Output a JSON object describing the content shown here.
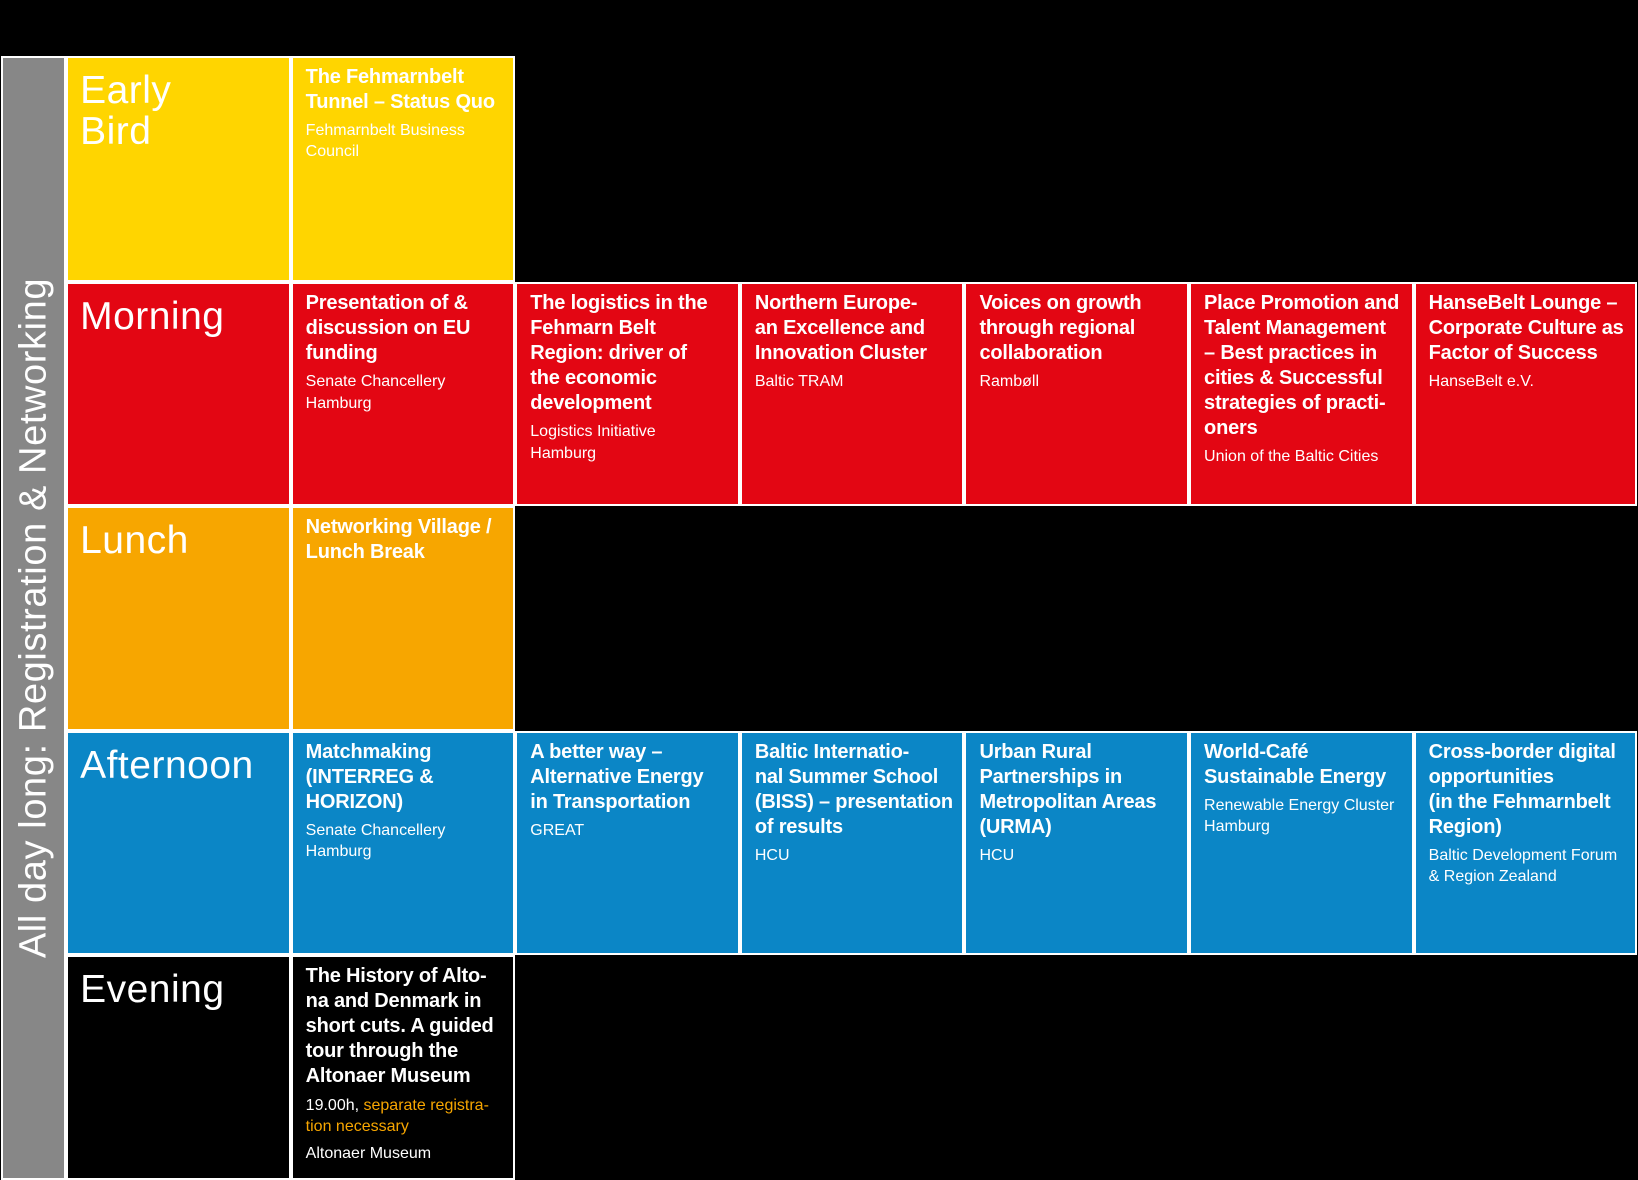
{
  "palette": {
    "yellow": "#ffd500",
    "red": "#e30613",
    "orange": "#f7a600",
    "blue": "#0b86c6",
    "gray": "#878787",
    "black": "#000000",
    "white": "#ffffff"
  },
  "sidebar": {
    "label": "All day long: Registration & Networking"
  },
  "rows": {
    "early_bird": {
      "label": "Early\nBird"
    },
    "morning": {
      "label": "Morning"
    },
    "lunch": {
      "label": "Lunch"
    },
    "afternoon": {
      "label": "Afternoon"
    },
    "evening": {
      "label": "Evening"
    }
  },
  "cards": {
    "early_bird": {
      "title": "The Fehmarnbelt\nTunnel – Status Quo",
      "org": "Fehmarnbelt Business\nCouncil"
    },
    "morning": [
      {
        "title": "Presentation of &\ndiscussion on EU\nfunding",
        "org": "Senate Chancellery\nHamburg"
      },
      {
        "title": "The logistics in the\nFehmarn Belt\nRegion: driver of\nthe economic\ndevelopment",
        "org": "Logistics Initiative\nHamburg"
      },
      {
        "title": "Northern Europe-\nan Excellence and\nInnovation Cluster",
        "org": "Baltic TRAM"
      },
      {
        "title": "Voices on growth\nthrough regional\ncollaboration",
        "org": "Rambøll"
      },
      {
        "title": "Place Promotion and\nTalent Management\n– Best practices in\ncities & Successful\nstrategies of practi-\noners",
        "org": "Union of the Baltic Cities"
      },
      {
        "title": "HanseBelt Lounge –\nCorporate Culture as\nFactor of Success",
        "org": "HanseBelt e.V."
      }
    ],
    "lunch": {
      "title": "Networking Village /\nLunch Break"
    },
    "afternoon": [
      {
        "title": "Matchmaking\n(INTERREG &\nHORIZON)",
        "org": "Senate Chancellery\nHamburg"
      },
      {
        "title": "A better way –\nAlternative Energy\nin Transportation",
        "org": "GREAT"
      },
      {
        "title": "Baltic Internatio-\nnal Summer School\n(BISS) – presentation\nof results",
        "org": "HCU"
      },
      {
        "title": "Urban Rural\nPartnerships in\nMetropolitan Areas\n(URMA)",
        "org": "HCU"
      },
      {
        "title": "World-Café\nSustainable Energy",
        "org": "Renewable Energy Cluster\nHamburg"
      },
      {
        "title": "Cross-border digital\nopportunities\n(in the Fehmarnbelt\nRegion)",
        "org": "Baltic Development Forum\n& Region Zealand"
      }
    ],
    "evening": {
      "title": "The History of Alto-\nna and Denmark in\nshort cuts. A guided\ntour through the\nAltonaer Museum",
      "time": "19.00h, ",
      "notice": "separate registra-\ntion necessary",
      "org": "Altonaer Museum"
    }
  }
}
